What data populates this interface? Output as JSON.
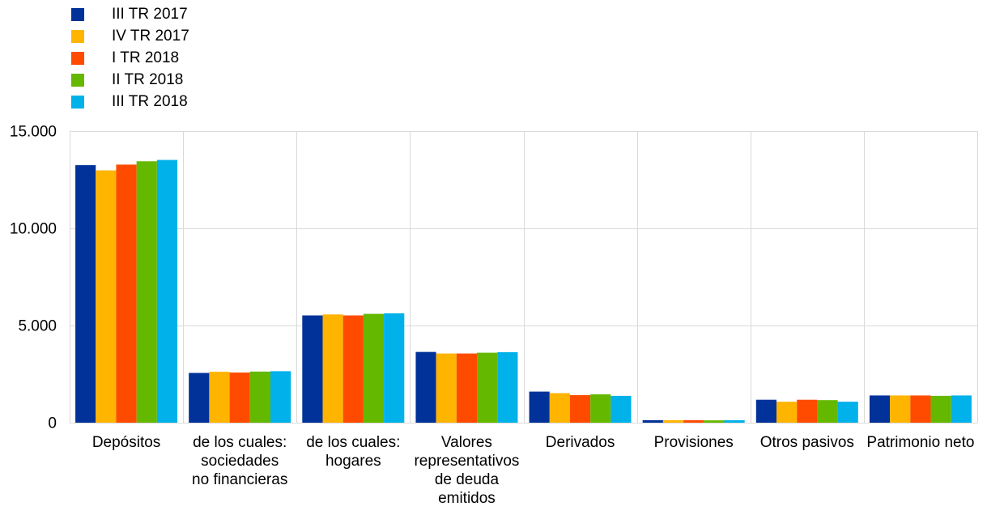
{
  "chart_data": {
    "type": "bar",
    "categories": [
      [
        "Depósitos"
      ],
      [
        "de los cuales:",
        "sociedades",
        "no financieras"
      ],
      [
        "de los cuales:",
        "hogares"
      ],
      [
        "Valores",
        "representativos",
        "de deuda",
        "emitidos"
      ],
      [
        "Derivados"
      ],
      [
        "Provisiones"
      ],
      [
        "Otros pasivos"
      ],
      [
        "Patrimonio neto"
      ]
    ],
    "series": [
      {
        "name": "III TR 2017",
        "color": "#003299",
        "values": [
          13250,
          2560,
          5520,
          3640,
          1600,
          130,
          1180,
          1400
        ]
      },
      {
        "name": "IV TR 2017",
        "color": "#FFB400",
        "values": [
          12980,
          2620,
          5570,
          3560,
          1520,
          130,
          1080,
          1400
        ]
      },
      {
        "name": "I TR 2018",
        "color": "#FF4B00",
        "values": [
          13280,
          2580,
          5520,
          3560,
          1420,
          130,
          1180,
          1400
        ]
      },
      {
        "name": "II TR 2018",
        "color": "#65B800",
        "values": [
          13450,
          2630,
          5600,
          3600,
          1460,
          120,
          1160,
          1380
        ]
      },
      {
        "name": "III TR 2018",
        "color": "#00B1EA",
        "values": [
          13520,
          2650,
          5630,
          3630,
          1380,
          130,
          1080,
          1400
        ]
      }
    ],
    "ylim": [
      0,
      15000
    ],
    "yticks": [
      0,
      5000,
      10000,
      15000
    ],
    "ytick_labels": [
      "0",
      "5.000",
      "10.000",
      "15.000"
    ],
    "grid": true,
    "legend_position": "top-left",
    "title": "",
    "xlabel": "",
    "ylabel": ""
  }
}
